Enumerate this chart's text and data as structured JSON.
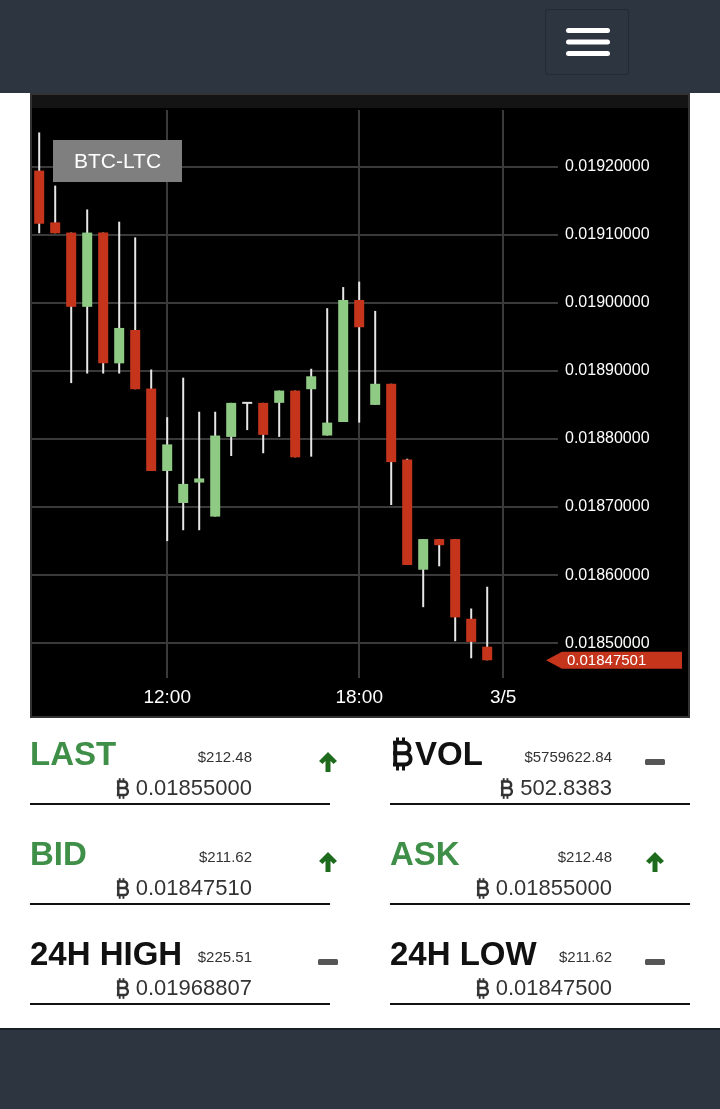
{
  "chart_data": [
    {
      "type": "candlestick",
      "title": "BTC-LTC",
      "categories": [
        null,
        null,
        null,
        null,
        null,
        null,
        null,
        null,
        "12:00",
        null,
        null,
        null,
        null,
        null,
        null,
        null,
        null,
        null,
        null,
        null,
        "18:00",
        null,
        null,
        null,
        null,
        null,
        null,
        null,
        null,
        "3/5"
      ],
      "ohlc": [
        [
          0.019194,
          0.01925,
          0.019102,
          0.019116
        ],
        [
          0.019118,
          0.019172,
          0.019102,
          0.019102
        ],
        [
          0.019103,
          0.019103,
          0.018882,
          0.018994
        ],
        [
          0.018994,
          0.019137,
          0.018896,
          0.019103
        ],
        [
          0.019103,
          0.019103,
          0.018896,
          0.018911
        ],
        [
          0.018911,
          0.019119,
          0.018896,
          0.018963
        ],
        [
          0.01896,
          0.019096,
          0.018873,
          0.018873
        ],
        [
          0.018874,
          0.018902,
          0.018753,
          0.018753
        ],
        [
          0.018753,
          0.018832,
          0.01865,
          0.018792
        ],
        [
          0.018706,
          0.01889,
          0.018666,
          0.018734
        ],
        [
          0.018736,
          0.01884,
          0.018666,
          0.018742
        ],
        [
          0.018686,
          0.01884,
          0.018686,
          0.018805
        ],
        [
          0.018803,
          0.018853,
          0.018775,
          0.018853
        ],
        [
          0.018853,
          0.018853,
          0.018813,
          0.018853
        ],
        [
          0.018853,
          0.018853,
          0.018779,
          0.018806
        ],
        [
          0.018853,
          0.018871,
          0.018803,
          0.018871
        ],
        [
          0.018871,
          0.018871,
          0.018773,
          0.018773
        ],
        [
          0.018873,
          0.018903,
          0.018774,
          0.018892
        ],
        [
          0.018805,
          0.018992,
          0.018805,
          0.018824
        ],
        [
          0.018825,
          0.019023,
          0.018825,
          0.019004
        ],
        [
          0.019004,
          0.019031,
          0.018824,
          0.018964
        ],
        [
          0.01885,
          0.018988,
          0.01885,
          0.018881
        ],
        [
          0.018881,
          0.018881,
          0.018703,
          0.018766
        ],
        [
          0.01877,
          0.018771,
          0.018615,
          0.018615
        ],
        [
          0.018608,
          0.018653,
          0.018553,
          0.018653
        ],
        [
          0.018653,
          0.018653,
          0.018613,
          0.018644
        ],
        [
          0.018653,
          0.018653,
          0.018503,
          0.018538
        ],
        [
          0.018536,
          0.018551,
          0.018478,
          0.018502
        ],
        [
          0.018495,
          0.018583,
          0.01847501,
          0.01847501
        ],
        null
      ],
      "colors": [
        "#c5351c",
        "#c5351c",
        "#c5351c",
        "#8fca84",
        "#c5351c",
        "#8fca84",
        "#c5351c",
        "#c5351c",
        "#8fca84",
        "#8fca84",
        "#8fca84",
        "#8fca84",
        "#8fca84",
        "#e0e0e0",
        "#c5351c",
        "#8fca84",
        "#c5351c",
        "#8fca84",
        "#8fca84",
        "#8fca84",
        "#c5351c",
        "#8fca84",
        "#c5351c",
        "#c5351c",
        "#8fca84",
        "#c5351c",
        "#c5351c",
        "#c5351c",
        "#c5351c",
        null
      ],
      "ylim": [
        0.018449,
        0.019283
      ],
      "yticks": [
        {
          "value": 0.0185,
          "label": "0.01850000"
        },
        {
          "value": 0.0186,
          "label": "0.01860000"
        },
        {
          "value": 0.0187,
          "label": "0.01870000"
        },
        {
          "value": 0.0188,
          "label": "0.01880000"
        },
        {
          "value": 0.0189,
          "label": "0.01890000"
        },
        {
          "value": 0.019,
          "label": "0.01900000"
        },
        {
          "value": 0.0191,
          "label": "0.01910000"
        },
        {
          "value": 0.0192,
          "label": "0.01920000"
        }
      ],
      "grid": true,
      "annotations": [
        "0.01847501"
      ]
    },
    {
      "type": "other",
      "annotations": [
        "LAST",
        "$212.48",
        "0.01855000",
        "VOL",
        "$5759622.84",
        "502.8383",
        "BID",
        "$211.62",
        "0.01847510",
        "ASK",
        "$212.48",
        "0.01855000",
        "24H HIGH",
        "$225.51",
        "0.01968807",
        "24H LOW",
        "$211.62",
        "0.01847500"
      ],
      "colors": [
        "#3f8f48",
        "#111111",
        "#3f8f48",
        "#3f8f48",
        "#111111",
        "#111111"
      ]
    }
  ]
}
